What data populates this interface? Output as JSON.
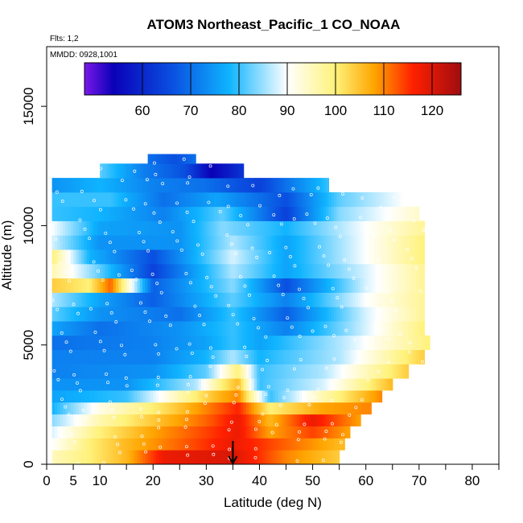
{
  "chart_data": {
    "type": "heatmap",
    "title": "ATOM3 Northeast_Pacific_1 CO_NOAA",
    "notes": {
      "flights": "Flts: 1,2",
      "dates": "MMDD: 0928,1001"
    },
    "xlabel": "Latitude (deg N)",
    "ylabel": "Altitude (m)",
    "xlim": [
      0,
      85
    ],
    "ylim": [
      0,
      17500
    ],
    "x_ticks": [
      0,
      5,
      10,
      20,
      30,
      40,
      50,
      60,
      70,
      80
    ],
    "x_tick_labels": [
      "0",
      "5",
      "10",
      "20",
      "30",
      "40",
      "50",
      "60",
      "70",
      "80"
    ],
    "x_minor_ticks": [
      15,
      25,
      35,
      45,
      55,
      65,
      75,
      85
    ],
    "y_ticks": [
      0,
      5000,
      10000,
      15000
    ],
    "y_tick_labels": [
      "0",
      "5000",
      "10000",
      "15000"
    ],
    "colorbar": {
      "min": 48,
      "max": 126,
      "ticks": [
        60,
        70,
        80,
        90,
        100,
        110,
        120
      ],
      "tick_labels": [
        "60",
        "70",
        "80",
        "90",
        "100",
        "110",
        "120"
      ],
      "colors": [
        "#7a18e8",
        "#0a00b8",
        "#0a4ee0",
        "#0fb4ff",
        "#ffffff",
        "#fff27a",
        "#ffa500",
        "#ff2000",
        "#a00c10"
      ],
      "stops": [
        48,
        54,
        66,
        78,
        90,
        100,
        108,
        116,
        126
      ]
    },
    "arrow_latitude": 35,
    "layers": [
      {
        "alt": [
          0,
          600
        ],
        "lat": [
          1,
          55
        ],
        "profile": [
          [
            1,
            95
          ],
          [
            8,
            100
          ],
          [
            15,
            106
          ],
          [
            22,
            118
          ],
          [
            35,
            120
          ],
          [
            45,
            110
          ],
          [
            55,
            104
          ]
        ]
      },
      {
        "alt": [
          600,
          1100
        ],
        "lat": [
          1,
          56
        ],
        "profile": [
          [
            1,
            90
          ],
          [
            8,
            100
          ],
          [
            15,
            106
          ],
          [
            25,
            112
          ],
          [
            35,
            118
          ],
          [
            45,
            112
          ],
          [
            55,
            106
          ]
        ]
      },
      {
        "alt": [
          1100,
          1600
        ],
        "lat": [
          1,
          57
        ],
        "profile": [
          [
            1,
            88
          ],
          [
            10,
            100
          ],
          [
            20,
            108
          ],
          [
            30,
            114
          ],
          [
            36,
            118
          ],
          [
            42,
            108
          ],
          [
            50,
            114
          ],
          [
            57,
            108
          ]
        ]
      },
      {
        "alt": [
          1600,
          2100
        ],
        "lat": [
          1,
          59
        ],
        "profile": [
          [
            1,
            84
          ],
          [
            10,
            96
          ],
          [
            22,
            106
          ],
          [
            30,
            112
          ],
          [
            36,
            118
          ],
          [
            42,
            106
          ],
          [
            50,
            118
          ],
          [
            59,
            108
          ]
        ]
      },
      {
        "alt": [
          2100,
          2600
        ],
        "lat": [
          1,
          61
        ],
        "profile": [
          [
            1,
            78
          ],
          [
            10,
            92
          ],
          [
            22,
            102
          ],
          [
            30,
            110
          ],
          [
            36,
            116
          ],
          [
            42,
            100
          ],
          [
            52,
            108
          ],
          [
            61,
            110
          ]
        ]
      },
      {
        "alt": [
          2600,
          3100
        ],
        "lat": [
          1,
          63
        ],
        "profile": [
          [
            1,
            76
          ],
          [
            15,
            80
          ],
          [
            25,
            96
          ],
          [
            32,
            106
          ],
          [
            36,
            110
          ],
          [
            42,
            80
          ],
          [
            52,
            96
          ],
          [
            63,
            110
          ]
        ]
      },
      {
        "alt": [
          3100,
          3600
        ],
        "lat": [
          1,
          65
        ],
        "profile": [
          [
            1,
            74
          ],
          [
            15,
            74
          ],
          [
            28,
            86
          ],
          [
            33,
            100
          ],
          [
            36,
            106
          ],
          [
            40,
            80
          ],
          [
            52,
            88
          ],
          [
            65,
            106
          ]
        ]
      },
      {
        "alt": [
          3600,
          4200
        ],
        "lat": [
          1,
          68
        ],
        "profile": [
          [
            1,
            72
          ],
          [
            20,
            74
          ],
          [
            30,
            82
          ],
          [
            34,
            94
          ],
          [
            36,
            100
          ],
          [
            40,
            80
          ],
          [
            52,
            86
          ],
          [
            68,
            104
          ]
        ]
      },
      {
        "alt": [
          4200,
          4800
        ],
        "lat": [
          1,
          71
        ],
        "profile": [
          [
            1,
            72
          ],
          [
            20,
            72
          ],
          [
            30,
            78
          ],
          [
            35,
            86
          ],
          [
            40,
            78
          ],
          [
            55,
            86
          ],
          [
            71,
            104
          ]
        ]
      },
      {
        "alt": [
          4800,
          5400
        ],
        "lat": [
          1,
          72
        ],
        "profile": [
          [
            1,
            70
          ],
          [
            20,
            72
          ],
          [
            30,
            76
          ],
          [
            35,
            80
          ],
          [
            40,
            76
          ],
          [
            55,
            86
          ],
          [
            72,
            100
          ]
        ]
      },
      {
        "alt": [
          5400,
          6000
        ],
        "lat": [
          1,
          71
        ],
        "profile": [
          [
            1,
            76
          ],
          [
            10,
            70
          ],
          [
            25,
            74
          ],
          [
            35,
            80
          ],
          [
            45,
            72
          ],
          [
            60,
            88
          ],
          [
            71,
            100
          ]
        ]
      },
      {
        "alt": [
          6000,
          6600
        ],
        "lat": [
          1,
          71
        ],
        "profile": [
          [
            1,
            82
          ],
          [
            10,
            74
          ],
          [
            25,
            70
          ],
          [
            35,
            80
          ],
          [
            45,
            68
          ],
          [
            60,
            88
          ],
          [
            71,
            98
          ]
        ]
      },
      {
        "alt": [
          6600,
          7200
        ],
        "lat": [
          1,
          71
        ],
        "profile": [
          [
            1,
            86
          ],
          [
            10,
            76
          ],
          [
            20,
            68
          ],
          [
            35,
            82
          ],
          [
            45,
            72
          ],
          [
            60,
            90
          ],
          [
            71,
            98
          ]
        ]
      },
      {
        "alt": [
          7200,
          7800
        ],
        "lat": [
          1,
          71
        ],
        "profile": [
          [
            1,
            104
          ],
          [
            8,
            100
          ],
          [
            12,
            112
          ],
          [
            20,
            68
          ],
          [
            35,
            84
          ],
          [
            45,
            66
          ],
          [
            60,
            88
          ],
          [
            71,
            98
          ]
        ]
      },
      {
        "alt": [
          7800,
          8400
        ],
        "lat": [
          1,
          71
        ],
        "profile": [
          [
            1,
            96
          ],
          [
            10,
            82
          ],
          [
            20,
            64
          ],
          [
            35,
            86
          ],
          [
            45,
            76
          ],
          [
            60,
            88
          ],
          [
            71,
            98
          ]
        ]
      },
      {
        "alt": [
          8400,
          9000
        ],
        "lat": [
          1,
          71
        ],
        "profile": [
          [
            1,
            100
          ],
          [
            8,
            78
          ],
          [
            20,
            66
          ],
          [
            35,
            88
          ],
          [
            45,
            76
          ],
          [
            60,
            90
          ],
          [
            71,
            100
          ]
        ]
      },
      {
        "alt": [
          9000,
          9600
        ],
        "lat": [
          1,
          71
        ],
        "profile": [
          [
            1,
            88
          ],
          [
            10,
            74
          ],
          [
            25,
            74
          ],
          [
            35,
            86
          ],
          [
            45,
            76
          ],
          [
            60,
            90
          ],
          [
            71,
            100
          ]
        ]
      },
      {
        "alt": [
          9600,
          10200
        ],
        "lat": [
          1,
          71
        ],
        "profile": [
          [
            1,
            90
          ],
          [
            10,
            76
          ],
          [
            25,
            74
          ],
          [
            33,
            84
          ],
          [
            45,
            78
          ],
          [
            60,
            90
          ],
          [
            71,
            98
          ]
        ]
      },
      {
        "alt": [
          10200,
          10800
        ],
        "lat": [
          1,
          70
        ],
        "profile": [
          [
            1,
            80
          ],
          [
            10,
            78
          ],
          [
            22,
            72
          ],
          [
            33,
            82
          ],
          [
            45,
            64
          ],
          [
            55,
            84
          ],
          [
            70,
            94
          ]
        ]
      },
      {
        "alt": [
          10800,
          11400
        ],
        "lat": [
          1,
          67
        ],
        "profile": [
          [
            1,
            80
          ],
          [
            12,
            80
          ],
          [
            22,
            70
          ],
          [
            32,
            76
          ],
          [
            45,
            66
          ],
          [
            55,
            82
          ],
          [
            67,
            90
          ]
        ]
      },
      {
        "alt": [
          11400,
          12000
        ],
        "lat": [
          1,
          53
        ],
        "profile": [
          [
            1,
            74
          ],
          [
            10,
            78
          ],
          [
            20,
            72
          ],
          [
            30,
            70
          ],
          [
            40,
            64
          ],
          [
            53,
            80
          ]
        ]
      },
      {
        "alt": [
          12000,
          12600
        ],
        "lat": [
          10,
          37
        ],
        "profile": [
          [
            10,
            82
          ],
          [
            18,
            72
          ],
          [
            26,
            66
          ],
          [
            31,
            54
          ],
          [
            37,
            62
          ]
        ]
      },
      {
        "alt": [
          12600,
          13000
        ],
        "lat": [
          19,
          28
        ],
        "profile": [
          [
            19,
            70
          ],
          [
            24,
            66
          ],
          [
            28,
            70
          ]
        ]
      }
    ]
  }
}
